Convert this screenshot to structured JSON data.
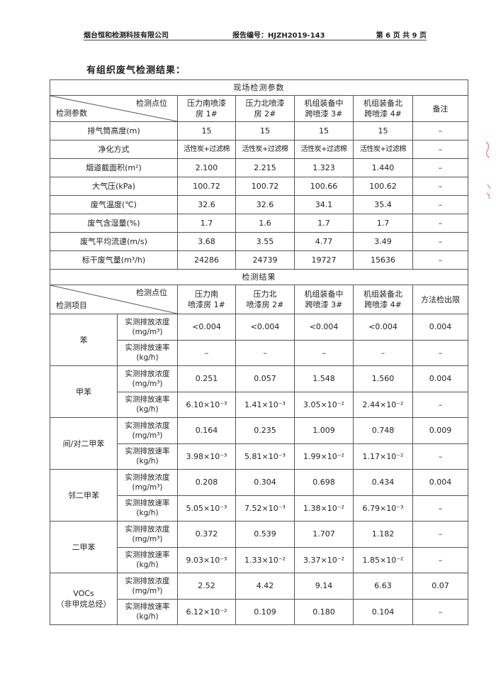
{
  "header": {
    "company": "烟台恒和检测科技有限公司",
    "report_no": "报告编号：HJZH2019-143",
    "page": "第 6 页 共 9 页"
  },
  "title": "有组织废气检测结果：",
  "params": {
    "section": "现场检测参数",
    "corner_top": "检测点位",
    "corner_bottom": "检测参数",
    "columns": [
      [
        "压力南喷漆",
        "房 1#"
      ],
      [
        "压力北喷漆",
        "房 2#"
      ],
      [
        "机组装备中",
        "跨喷漆 3#"
      ],
      [
        "机组装备北",
        "跨喷漆 4#"
      ]
    ],
    "remark": "备注",
    "rows": [
      {
        "label": "排气筒高度(m)",
        "values": [
          "15",
          "15",
          "15",
          "15"
        ],
        "remark": "–"
      },
      {
        "label": "净化方式",
        "values": [
          "活性炭+过滤棉",
          "活性炭+过滤棉",
          "活性炭+过滤棉",
          "活性炭+过滤棉"
        ],
        "remark": "–"
      },
      {
        "label": "烟道截面积(m²)",
        "values": [
          "2.100",
          "2.215",
          "1.323",
          "1.440"
        ],
        "remark": "–"
      },
      {
        "label": "大气压(kPa)",
        "values": [
          "100.72",
          "100.72",
          "100.66",
          "100.62"
        ],
        "remark": "–"
      },
      {
        "label": "废气温度(℃)",
        "values": [
          "32.6",
          "32.6",
          "34.1",
          "35.4"
        ],
        "remark": "–"
      },
      {
        "label": "废气含湿量(%)",
        "values": [
          "1.7",
          "1.6",
          "1.7",
          "1.7"
        ],
        "remark": "–"
      },
      {
        "label": "废气平均流速(m/s)",
        "values": [
          "3.68",
          "3.55",
          "4.77",
          "3.49"
        ],
        "remark": "–"
      },
      {
        "label": "标干废气量(m³/h)",
        "values": [
          "24286",
          "24739",
          "19727",
          "15636"
        ],
        "remark": "–"
      }
    ]
  },
  "results": {
    "section": "检测结果",
    "corner_top": "检测点位",
    "corner_bottom": "检测项目",
    "columns": [
      [
        "压力南",
        "喷漆房 1#"
      ],
      [
        "压力北",
        "喷漆房 2#"
      ],
      [
        "机组装备中",
        "跨喷漆 3#"
      ],
      [
        "机组装备北",
        "跨喷漆 4#"
      ]
    ],
    "limit": "方法检出限",
    "conc_label": [
      "实测排放浓度",
      "(mg/m³)"
    ],
    "rate_label": [
      "实测排放速率",
      "(kg/h)"
    ],
    "items": [
      {
        "name": [
          "苯"
        ],
        "conc": [
          "<0.004",
          "<0.004",
          "<0.004",
          "<0.004"
        ],
        "conc_limit": "0.004",
        "rate": [
          "–",
          "–",
          "–",
          "–"
        ],
        "rate_limit": "–"
      },
      {
        "name": [
          "甲苯"
        ],
        "conc": [
          "0.251",
          "0.057",
          "1.548",
          "1.560"
        ],
        "conc_limit": "0.004",
        "rate": [
          "6.10×10⁻³",
          "1.41×10⁻³",
          "3.05×10⁻²",
          "2.44×10⁻²"
        ],
        "rate_limit": "–"
      },
      {
        "name": [
          "间/对二甲苯"
        ],
        "conc": [
          "0.164",
          "0.235",
          "1.009",
          "0.748"
        ],
        "conc_limit": "0.009",
        "rate": [
          "3.98×10⁻³",
          "5.81×10⁻³",
          "1.99×10⁻²",
          "1.17×10⁻²"
        ],
        "rate_limit": "–"
      },
      {
        "name": [
          "邻二甲苯"
        ],
        "conc": [
          "0.208",
          "0.304",
          "0.698",
          "0.434"
        ],
        "conc_limit": "0.004",
        "rate": [
          "5.05×10⁻³",
          "7.52×10⁻³",
          "1.38×10⁻²",
          "6.79×10⁻³"
        ],
        "rate_limit": "–"
      },
      {
        "name": [
          "二甲苯"
        ],
        "conc": [
          "0.372",
          "0.539",
          "1.707",
          "1.182"
        ],
        "conc_limit": "–",
        "rate": [
          "9.03×10⁻³",
          "1.33×10⁻²",
          "3.37×10⁻²",
          "1.85×10⁻²"
        ],
        "rate_limit": "–"
      },
      {
        "name": [
          "VOCs",
          "（非甲烷总烃）"
        ],
        "conc": [
          "2.52",
          "4.42",
          "9.14",
          "6.63"
        ],
        "conc_limit": "0.07",
        "rate": [
          "6.12×10⁻²",
          "0.109",
          "0.180",
          "0.104"
        ],
        "rate_limit": "–"
      }
    ]
  },
  "colors": {
    "border": "#555555",
    "stamp": "#e0405a"
  }
}
